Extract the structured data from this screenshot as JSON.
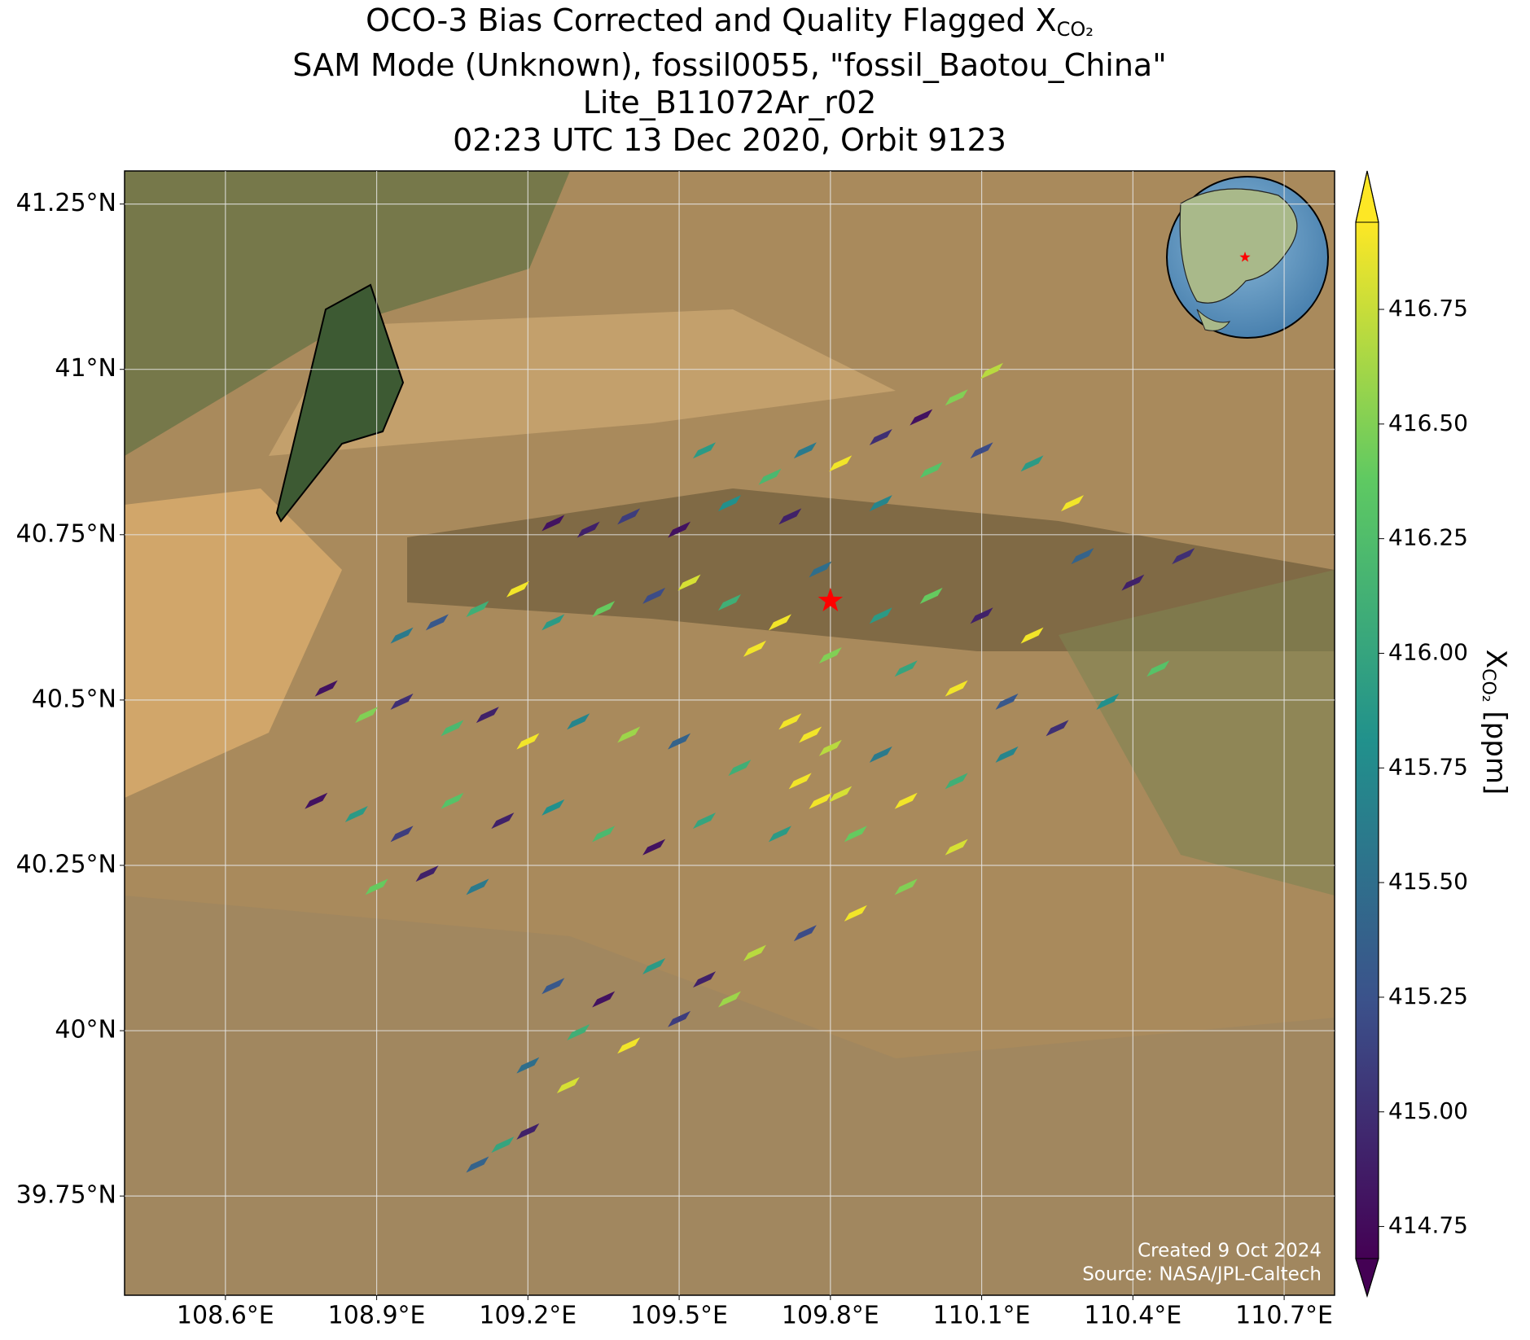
{
  "chart_data": {
    "type": "map-scatter",
    "title_lines": [
      "OCO-3 Bias Corrected and Quality Flagged X",
      "SAM Mode (Unknown), fossil0055, \"fossil_Baotou_China\"",
      "Lite_B11072Ar_r02",
      "02:23 UTC 13 Dec 2020, Orbit 9123"
    ],
    "title_subscript": "CO₂",
    "xlim": [
      108.4,
      110.8
    ],
    "ylim": [
      39.6,
      41.3
    ],
    "xticks": [
      {
        "value": 108.6,
        "label": "108.6°E"
      },
      {
        "value": 108.9,
        "label": "108.9°E"
      },
      {
        "value": 109.2,
        "label": "109.2°E"
      },
      {
        "value": 109.5,
        "label": "109.5°E"
      },
      {
        "value": 109.8,
        "label": "109.8°E"
      },
      {
        "value": 110.1,
        "label": "110.1°E"
      },
      {
        "value": 110.4,
        "label": "110.4°E"
      },
      {
        "value": 110.7,
        "label": "110.7°E"
      }
    ],
    "yticks": [
      {
        "value": 39.75,
        "label": "39.75°N"
      },
      {
        "value": 40,
        "label": "40°N"
      },
      {
        "value": 40.25,
        "label": "40.25°N"
      },
      {
        "value": 40.5,
        "label": "40.5°N"
      },
      {
        "value": 40.75,
        "label": "40.75°N"
      },
      {
        "value": 41,
        "label": "41°N"
      },
      {
        "value": 41.25,
        "label": "41.25°N"
      }
    ],
    "grid": true,
    "colormap": "viridis",
    "clim": [
      414.68,
      416.94
    ],
    "cticks": [
      414.75,
      {
        "value": 415,
        "label": "415.00"
      },
      415.25,
      {
        "value": 415.5,
        "label": "415.50"
      },
      415.75,
      {
        "value": 416,
        "label": "416.00"
      },
      416.25,
      {
        "value": 416.5,
        "label": "416.50"
      },
      416.75
    ],
    "colorbar_label": "X",
    "colorbar_label_subscript": "CO₂",
    "colorbar_label_unit": "[ppm]",
    "target": {
      "lon": 109.8,
      "lat": 40.65,
      "color": "#ff0000"
    },
    "soundings": {
      "lon": [
        109.25,
        109.32,
        109.4,
        109.5,
        109.6,
        109.68,
        109.75,
        109.82,
        109.9,
        109.98,
        110.05,
        110.12,
        109.55,
        109.72,
        109.9,
        110.0,
        110.1,
        110.2,
        110.28,
        110.3,
        110.4,
        110.5,
        108.95,
        109.02,
        109.1,
        109.18,
        109.25,
        109.35,
        109.45,
        109.52,
        109.6,
        109.7,
        109.78,
        109.9,
        110.0,
        110.1,
        110.2,
        109.65,
        109.8,
        109.95,
        110.05,
        110.15,
        108.8,
        108.88,
        108.95,
        109.05,
        109.12,
        109.2,
        109.3,
        109.4,
        109.5,
        108.78,
        108.86,
        108.95,
        109.05,
        109.15,
        109.25,
        109.35,
        109.45,
        109.55,
        108.9,
        109.0,
        109.1,
        109.72,
        109.76,
        109.8,
        109.74,
        109.78,
        109.82,
        109.7,
        109.85,
        109.62,
        109.9,
        109.95,
        110.05,
        110.15,
        110.25,
        110.35,
        110.45,
        110.05,
        109.95,
        109.85,
        109.75,
        109.65,
        109.55,
        109.45,
        109.35,
        109.25,
        109.3,
        109.4,
        109.5,
        109.6,
        109.2,
        109.28,
        109.2,
        109.15,
        109.1
      ],
      "lat": [
        40.77,
        40.76,
        40.78,
        40.76,
        40.8,
        40.84,
        40.88,
        40.86,
        40.9,
        40.93,
        40.96,
        41.0,
        40.88,
        40.78,
        40.8,
        40.85,
        40.88,
        40.86,
        40.8,
        40.72,
        40.68,
        40.72,
        40.6,
        40.62,
        40.64,
        40.67,
        40.62,
        40.64,
        40.66,
        40.68,
        40.65,
        40.62,
        40.7,
        40.63,
        40.66,
        40.63,
        40.6,
        40.58,
        40.57,
        40.55,
        40.52,
        40.5,
        40.52,
        40.48,
        40.5,
        40.46,
        40.48,
        40.44,
        40.47,
        40.45,
        40.44,
        40.35,
        40.33,
        40.3,
        40.35,
        40.32,
        40.34,
        40.3,
        40.28,
        40.32,
        40.22,
        40.24,
        40.22,
        40.47,
        40.45,
        40.43,
        40.38,
        40.35,
        40.36,
        40.3,
        40.3,
        40.4,
        40.42,
        40.35,
        40.38,
        40.42,
        40.46,
        40.5,
        40.55,
        40.28,
        40.22,
        40.18,
        40.15,
        40.12,
        40.08,
        40.1,
        40.05,
        40.07,
        40.0,
        39.98,
        40.02,
        40.05,
        39.95,
        39.92,
        39.85,
        39.83,
        39.8
      ],
      "xco2": [
        414.8,
        414.9,
        415.1,
        414.8,
        415.8,
        416.2,
        415.6,
        416.9,
        415.0,
        414.8,
        416.5,
        416.7,
        415.9,
        414.9,
        415.7,
        416.3,
        415.2,
        415.9,
        416.9,
        415.4,
        414.9,
        415.0,
        415.6,
        415.3,
        416.1,
        416.9,
        415.9,
        416.4,
        415.2,
        416.8,
        416.1,
        416.9,
        415.5,
        415.9,
        416.4,
        414.9,
        416.9,
        416.9,
        416.5,
        416.0,
        416.9,
        415.3,
        414.8,
        416.5,
        415.0,
        416.2,
        414.9,
        416.9,
        415.7,
        416.6,
        415.4,
        414.8,
        415.9,
        415.1,
        416.3,
        414.9,
        415.8,
        416.2,
        414.8,
        416.0,
        416.4,
        414.9,
        415.6,
        416.9,
        416.9,
        416.7,
        416.9,
        416.9,
        416.8,
        415.9,
        416.4,
        416.1,
        415.6,
        416.9,
        416.1,
        415.7,
        415.0,
        415.8,
        416.3,
        416.8,
        416.5,
        416.9,
        415.2,
        416.7,
        414.9,
        415.9,
        414.8,
        415.3,
        416.1,
        416.9,
        415.1,
        416.6,
        415.5,
        416.8,
        414.9,
        416.0,
        415.4
      ]
    },
    "footnote_lines": [
      "Created 9 Oct 2024",
      "Source: NASA/JPL-Caltech"
    ]
  }
}
